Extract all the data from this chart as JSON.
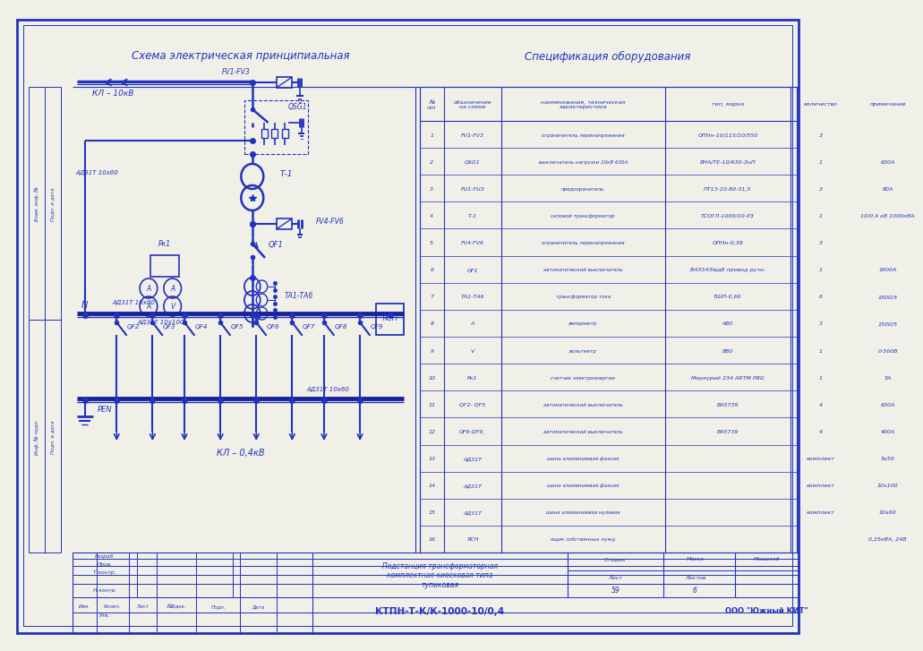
{
  "bg_color": "#f0f0e8",
  "line_color": "#2233bb",
  "line_width": 1.5,
  "title_left": "Схема электрическая принципиальная",
  "title_right": "Спецификация оборудования",
  "spec_rows": [
    [
      "1",
      "FV1-FV3",
      "ограничитель перенапряжения",
      "ОПНн-10/115/10/550",
      "3",
      ""
    ],
    [
      "2",
      "QSG1",
      "выключатель нагрузки 10кВ 630А",
      "ВНА/ТЕ-10/630-ЗнП",
      "1",
      "630А"
    ],
    [
      "3",
      "FU1-FU3",
      "предохранитель",
      "ПТ13-10-80-31,5",
      "3",
      "80А"
    ],
    [
      "4",
      "Т-1",
      "силовой трансформатор",
      "ТСОГЛ-1000/10-УЗ",
      "1",
      "10/0,4 кВ 1000кВА"
    ],
    [
      "5",
      "FV4-FV6",
      "ограничитель перенапряжения",
      "ОПНн-0,38",
      "3",
      ""
    ],
    [
      "6",
      "QF1",
      "автоматический выключатель",
      "ВА5543Iвд8 привод ручн.",
      "1",
      "1600А"
    ],
    [
      "7",
      "ТА1-ТА6",
      "трансформатор тока",
      "ТШП-0,66",
      "6",
      "1500/5"
    ],
    [
      "8",
      "А",
      "амперметр",
      "А80",
      "3",
      "1500/5"
    ],
    [
      "9",
      "V",
      "вольтметр",
      "В80",
      "1",
      "0-500В"
    ],
    [
      "10",
      "Рк1",
      "счетчик электроэнергии",
      "Меркурий 234 ARTM РВG",
      "1",
      "5А"
    ],
    [
      "11",
      "QF2- QF5",
      "автоматический выключатель",
      "ВА5739",
      "4",
      "630А"
    ],
    [
      "12",
      "QF6-QF9,",
      "автоматический выключатель",
      "ВА5739",
      "4",
      "400А"
    ],
    [
      "13",
      "АД31Т",
      "шина алюминиевая фазная",
      "",
      "комплект",
      "5х50"
    ],
    [
      "14",
      "АД31Т",
      "шина алюминиевая фазная",
      "",
      "комплект",
      "10х100"
    ],
    [
      "15",
      "АД31Т",
      "шина алюминиевая нулевая",
      "",
      "комплект",
      "10х60"
    ],
    [
      "16",
      "ЯСН",
      "ящик собственных нужд",
      "",
      "",
      "0,25кВА, 24В"
    ]
  ],
  "stamp_title": "Подстанция трансформаторная\nкомплектная киосковая типа\nтупиковая",
  "stamp_code": "КТПН-Т-К/К-1000-10/0,4",
  "stamp_org": "ООО \"Южный КИТ\"",
  "stamp_stage": "Стадия",
  "stamp_mass": "Масса",
  "stamp_scale": "Масштаб",
  "stamp_list": "Лист",
  "stamp_list_num": "59",
  "stamp_lists": "Листов",
  "stamp_lists_num": "6"
}
